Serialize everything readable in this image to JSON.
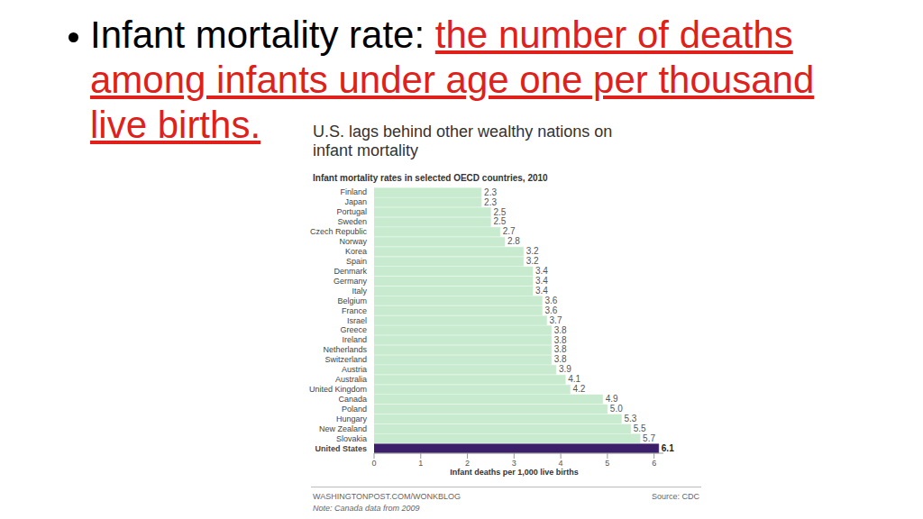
{
  "slide": {
    "term": "Infant mortality rate:",
    "definition": "the number of deaths among infants under age one per thousand live births."
  },
  "chart_data": {
    "type": "bar",
    "orientation": "horizontal",
    "title": "U.S. lags behind other wealthy nations on infant mortality",
    "subtitle": "Infant mortality rates in selected OECD countries, 2010",
    "x_label": "Infant deaths per 1,000 live births",
    "annotations": [
      "WASHINGTONPOST.COM/WONKBLOG",
      "Source: CDC",
      "Note: Canada data from 2009"
    ],
    "categories": [
      "Finland",
      "Japan",
      "Portugal",
      "Sweden",
      "Czech Republic",
      "Norway",
      "Korea",
      "Spain",
      "Denmark",
      "Germany",
      "Italy",
      "Belgium",
      "France",
      "Israel",
      "Greece",
      "Ireland",
      "Netherlands",
      "Switzerland",
      "Austria",
      "Australia",
      "United Kingdom",
      "Canada",
      "Poland",
      "Hungary",
      "New Zealand",
      "Slovakia",
      "United States"
    ],
    "values": [
      2.3,
      2.3,
      2.5,
      2.5,
      2.7,
      2.8,
      3.2,
      3.2,
      3.4,
      3.4,
      3.4,
      3.6,
      3.6,
      3.7,
      3.8,
      3.8,
      3.8,
      3.8,
      3.9,
      4.1,
      4.2,
      4.9,
      5.0,
      5.3,
      5.5,
      5.7,
      6.1
    ],
    "value_labels": [
      "2.3",
      "2.3",
      "2.5",
      "2.5",
      "2.7",
      "2.8",
      "3.2",
      "3.2",
      "3.4",
      "3.4",
      "3.4",
      "3.6",
      "3.6",
      "3.7",
      "3.8",
      "3.8",
      "3.8",
      "3.8",
      "3.9",
      "4.1",
      "4.2",
      "4.9",
      "5.0",
      "5.3",
      "5.5",
      "5.7",
      "6.1"
    ],
    "colors": [
      "#c8ebcf",
      "#c8ebcf",
      "#c8ebcf",
      "#c8ebcf",
      "#c8ebcf",
      "#c8ebcf",
      "#c8ebcf",
      "#c8ebcf",
      "#c8ebcf",
      "#c8ebcf",
      "#c8ebcf",
      "#c8ebcf",
      "#c8ebcf",
      "#c8ebcf",
      "#c8ebcf",
      "#c8ebcf",
      "#c8ebcf",
      "#c8ebcf",
      "#c8ebcf",
      "#c8ebcf",
      "#c8ebcf",
      "#c8ebcf",
      "#c8ebcf",
      "#c8ebcf",
      "#c8ebcf",
      "#c8ebcf",
      "#3b1f6b"
    ],
    "xlim": [
      0,
      6.2
    ],
    "xticks": [
      0,
      1,
      2,
      3,
      4,
      5,
      6
    ],
    "grid": false,
    "data_labels": true
  }
}
